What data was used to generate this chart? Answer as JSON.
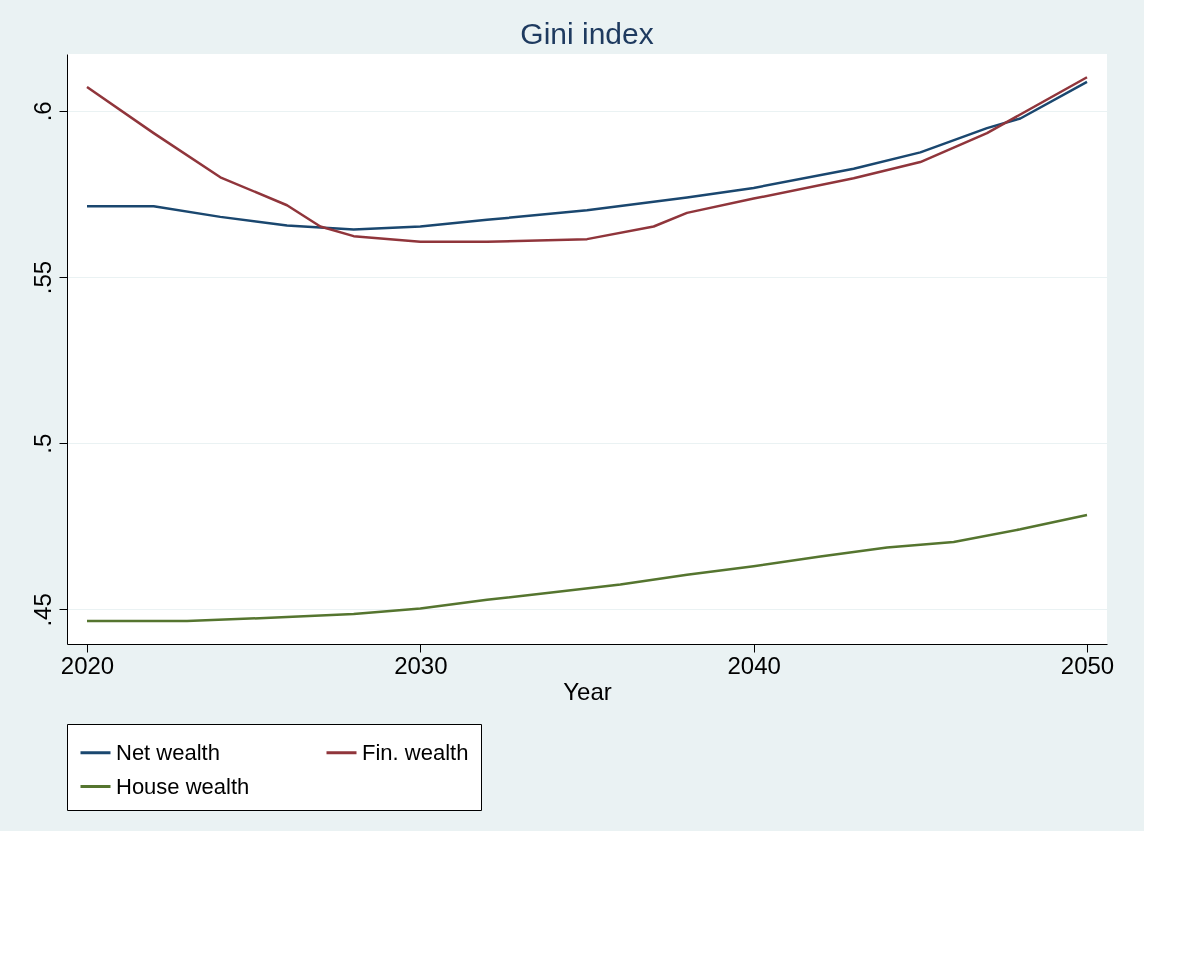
{
  "chart_data": {
    "type": "line",
    "title": "Gini index",
    "xlabel": "Year",
    "xlim": [
      2019.4,
      2050.6
    ],
    "xticks": [
      2020,
      2030,
      2040,
      2050
    ],
    "ylim": [
      0.4396,
      0.6171
    ],
    "yticks": [
      {
        "value": 0.45,
        "label": ".45"
      },
      {
        "value": 0.5,
        "label": ".5"
      },
      {
        "value": 0.55,
        "label": ".55"
      },
      {
        "value": 0.6,
        "label": ".6"
      }
    ],
    "grid": "y",
    "legend": "bottom",
    "line_style": "solid",
    "marker": "none",
    "series": [
      {
        "name": "Net wealth",
        "color": "#1a476f",
        "x": [
          2020,
          2022,
          2024,
          2026,
          2028,
          2030,
          2032,
          2035,
          2038,
          2040,
          2043,
          2045,
          2047,
          2048,
          2050
        ],
        "values": [
          0.5713,
          0.5713,
          0.5681,
          0.5655,
          0.5643,
          0.5652,
          0.5672,
          0.5701,
          0.5739,
          0.5768,
          0.5826,
          0.5875,
          0.5948,
          0.5977,
          0.6087
        ]
      },
      {
        "name": "Fin. wealth",
        "color": "#90353b",
        "x": [
          2020,
          2022,
          2024,
          2026,
          2027,
          2028,
          2030,
          2032,
          2035,
          2037,
          2038,
          2040,
          2043,
          2045,
          2047,
          2050
        ],
        "values": [
          0.6072,
          0.5933,
          0.58,
          0.5716,
          0.5652,
          0.5623,
          0.5606,
          0.5606,
          0.5614,
          0.5652,
          0.5693,
          0.5736,
          0.5797,
          0.5846,
          0.5933,
          0.6101
        ]
      },
      {
        "name": "House wealth",
        "color": "#55752f",
        "x": [
          2020,
          2023,
          2026,
          2028,
          2030,
          2032,
          2034,
          2036,
          2038,
          2040,
          2042,
          2044,
          2046,
          2048,
          2050
        ],
        "values": [
          0.4465,
          0.4465,
          0.4477,
          0.4486,
          0.4503,
          0.4529,
          0.4552,
          0.4575,
          0.4604,
          0.463,
          0.4659,
          0.4686,
          0.4703,
          0.4741,
          0.4784
        ]
      }
    ]
  }
}
